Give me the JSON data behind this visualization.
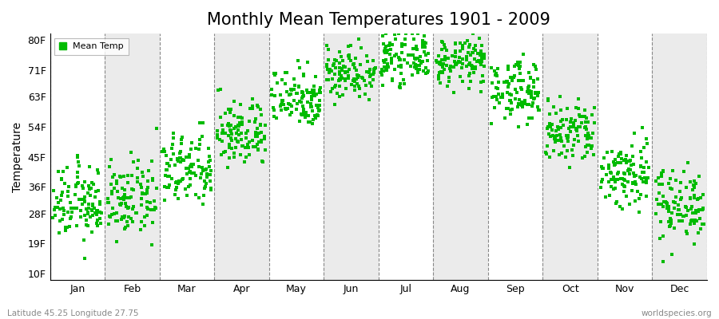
{
  "title": "Monthly Mean Temperatures 1901 - 2009",
  "ylabel": "Temperature",
  "yticks": [
    10,
    19,
    28,
    36,
    45,
    54,
    63,
    71,
    80
  ],
  "ytick_labels": [
    "10F",
    "19F",
    "28F",
    "36F",
    "45F",
    "54F",
    "63F",
    "71F",
    "80F"
  ],
  "ylim": [
    8,
    82
  ],
  "months": [
    "Jan",
    "Feb",
    "Mar",
    "Apr",
    "May",
    "Jun",
    "Jul",
    "Aug",
    "Sep",
    "Oct",
    "Nov",
    "Dec"
  ],
  "dot_color": "#00bb00",
  "dot_size": 6,
  "legend_label": "Mean Temp",
  "footer_left": "Latitude 45.25 Longitude 27.75",
  "footer_right": "worldspecies.org",
  "bg_color": "#ffffff",
  "alt_band_color": "#ebebeb",
  "title_fontsize": 15,
  "axis_fontsize": 10,
  "tick_fontsize": 9,
  "monthly_mean_temps_F": [
    31.0,
    32.0,
    41.0,
    52.0,
    63.0,
    70.5,
    74.5,
    73.5,
    65.0,
    52.0,
    40.0,
    31.0
  ],
  "temp_spread_F": [
    5.5,
    5.5,
    5.5,
    5.0,
    4.5,
    4.0,
    3.5,
    3.5,
    4.5,
    5.0,
    5.5,
    5.5
  ],
  "n_points": 109,
  "xlim_left": -0.5,
  "xlim_right": 12.5
}
